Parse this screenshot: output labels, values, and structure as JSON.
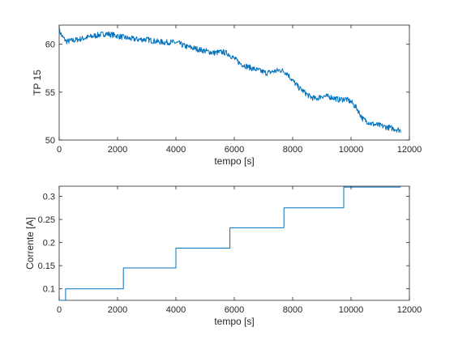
{
  "colors": {
    "series": "#0072BD",
    "axes": "#262626",
    "background": "#ffffff"
  },
  "chart_data": [
    {
      "type": "line",
      "xlabel": "tempo [s]",
      "ylabel": "TP 15",
      "xlim": [
        0,
        12000
      ],
      "ylim": [
        50,
        62
      ],
      "xticks": [
        0,
        2000,
        4000,
        6000,
        8000,
        10000,
        12000
      ],
      "yticks": [
        50,
        55,
        60
      ],
      "grid": false,
      "noise": 0.3,
      "series": [
        {
          "x": [
            0,
            100,
            250,
            500,
            800,
            1100,
            1400,
            1600,
            1800,
            2100,
            2400,
            2700,
            3000,
            3300,
            3600,
            3900,
            4100,
            4300,
            4600,
            5000,
            5300,
            5600,
            5800,
            6000,
            6200,
            6500,
            6800,
            7100,
            7400,
            7600,
            7800,
            8000,
            8200,
            8400,
            8600,
            8800,
            9000,
            9300,
            9600,
            9800,
            10000,
            10200,
            10400,
            10700,
            11000,
            11300,
            11600,
            11700
          ],
          "y": [
            61.5,
            60.8,
            60.3,
            60.4,
            60.6,
            60.8,
            61.0,
            61.1,
            61.0,
            60.8,
            60.6,
            60.5,
            60.5,
            60.3,
            60.2,
            60.2,
            60.1,
            59.8,
            59.6,
            59.3,
            59.1,
            59.2,
            59.0,
            58.5,
            58.0,
            57.6,
            57.3,
            57.0,
            57.2,
            57.3,
            57.0,
            56.2,
            55.5,
            55.0,
            54.5,
            54.3,
            54.6,
            54.5,
            54.2,
            54.3,
            54.0,
            53.3,
            52.2,
            51.7,
            51.5,
            51.3,
            51.1,
            51.0
          ]
        }
      ]
    },
    {
      "type": "line",
      "xlabel": "tempo [s]",
      "ylabel": "Corrente [A]",
      "xlim": [
        0,
        12000
      ],
      "ylim": [
        0.075,
        0.322
      ],
      "xticks": [
        0,
        2000,
        4000,
        6000,
        8000,
        10000,
        12000
      ],
      "yticks": [
        0.1,
        0.15,
        0.2,
        0.25,
        0.3
      ],
      "ytick_labels": [
        "0.1",
        "0.15",
        "0.2",
        "0.25",
        "0.3"
      ],
      "grid": false,
      "series": [
        {
          "x": [
            0,
            220,
            220,
            2200,
            2200,
            4000,
            4000,
            5850,
            5850,
            7700,
            7700,
            9750,
            9750,
            11700
          ],
          "y": [
            0.075,
            0.075,
            0.1,
            0.1,
            0.145,
            0.145,
            0.188,
            0.188,
            0.232,
            0.232,
            0.275,
            0.275,
            0.32,
            0.32
          ]
        }
      ]
    }
  ]
}
